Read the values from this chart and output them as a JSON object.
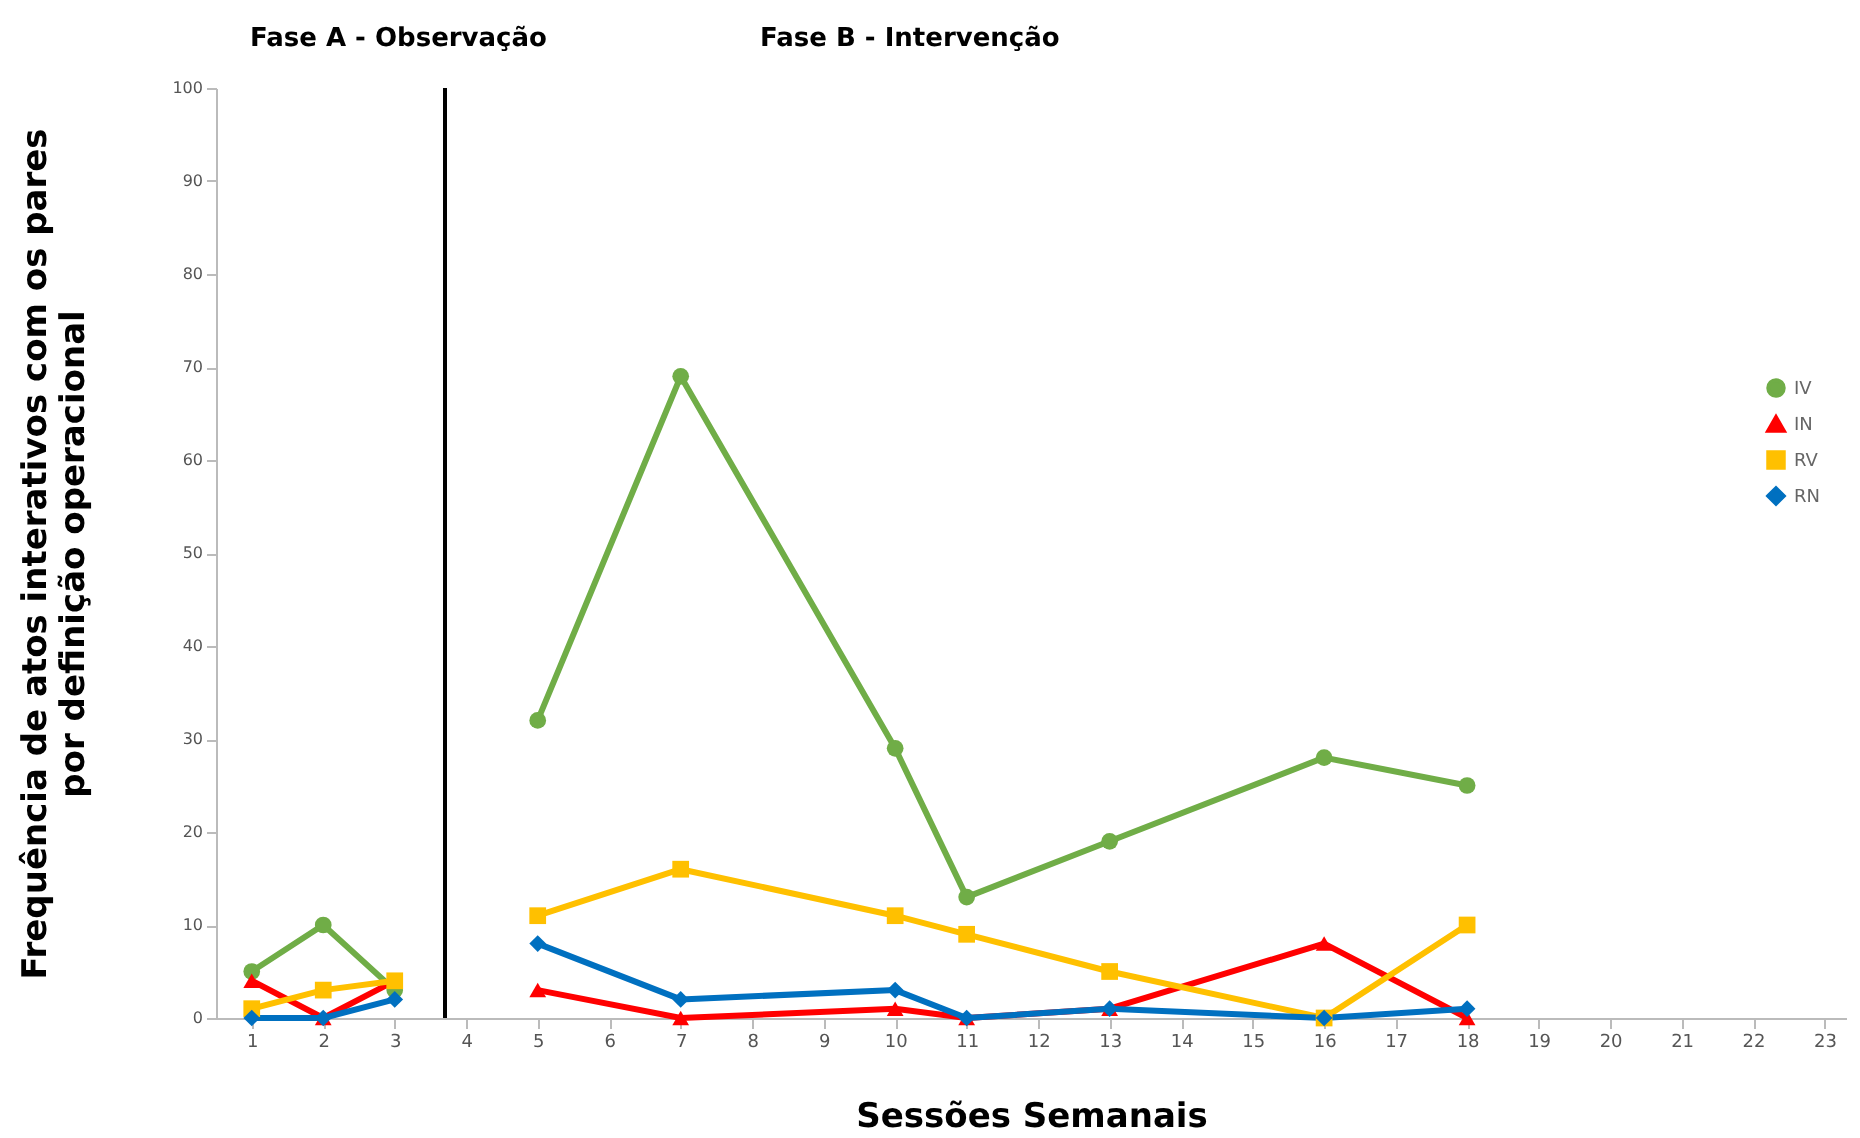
{
  "chart_data": {
    "type": "line",
    "xlabel": "Sessões Semanais",
    "ylabel": "Frequência de atos interativos com os pares\npor definição operacional",
    "annotations": [
      "Fase A - Observação",
      "Fase B - Intervenção"
    ],
    "x": [
      1,
      2,
      3,
      4,
      5,
      7,
      10,
      11,
      13,
      16,
      18
    ],
    "series": [
      {
        "name": "IV",
        "color": "#70ad47",
        "marker": "circle",
        "values": [
          5,
          10,
          3,
          null,
          32,
          69,
          29,
          13,
          19,
          28,
          25
        ]
      },
      {
        "name": "IN",
        "color": "#ff0000",
        "marker": "triangle",
        "values": [
          4,
          0,
          4,
          null,
          3,
          0,
          1,
          0,
          1,
          8,
          0
        ]
      },
      {
        "name": "RV",
        "color": "#ffc000",
        "marker": "square",
        "values": [
          1,
          3,
          4,
          null,
          11,
          16,
          11,
          9,
          5,
          0,
          10
        ]
      },
      {
        "name": "RN",
        "color": "#0070c0",
        "marker": "diamond",
        "values": [
          0,
          0,
          2,
          null,
          8,
          2,
          3,
          0,
          1,
          0,
          1
        ]
      }
    ],
    "xlim": [
      0.5,
      23.3
    ],
    "xticks": [
      1,
      2,
      3,
      4,
      5,
      6,
      7,
      8,
      9,
      10,
      11,
      12,
      13,
      14,
      15,
      16,
      17,
      18,
      19,
      20,
      21,
      22,
      23
    ],
    "ylim": [
      0,
      100
    ],
    "yticks": [
      0,
      10,
      20,
      30,
      40,
      50,
      60,
      70,
      80,
      90,
      100
    ],
    "ref_lines": [
      {
        "axis": "x",
        "value": 3.7,
        "color": "#000000"
      }
    ],
    "grid": false,
    "legend": "right"
  }
}
